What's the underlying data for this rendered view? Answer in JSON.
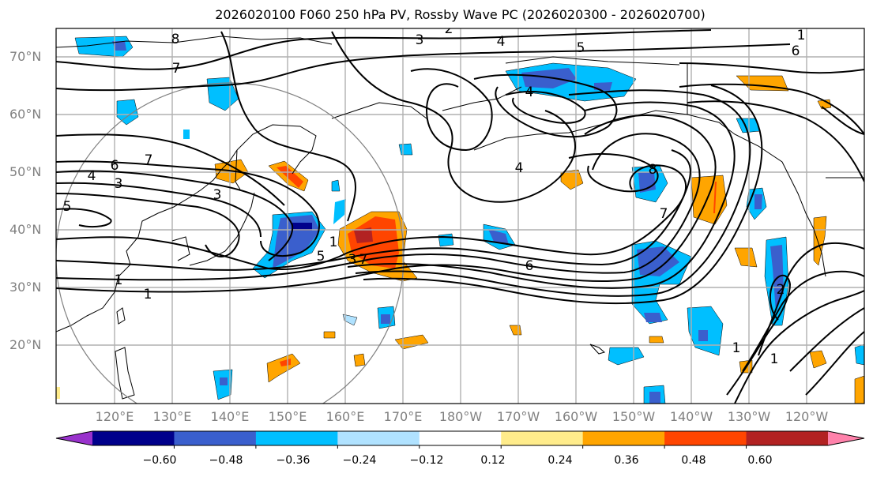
{
  "title": "2026020100 F060 250 hPa PV, Rossby Wave PC (2026020300 - 2026020700)",
  "lat_labels": [
    "70°N",
    "60°N",
    "50°N",
    "40°N",
    "30°N",
    "20°N"
  ],
  "lon_labels": [
    "120°E",
    "130°E",
    "140°E",
    "150°E",
    "160°E",
    "170°E",
    "180°W",
    "170°W",
    "160°W",
    "150°W",
    "140°W",
    "130°W",
    "120°W"
  ],
  "colorbar": {
    "ticks": [
      "−0.60",
      "−0.48",
      "−0.36",
      "−0.24",
      "−0.12",
      "0.12",
      "0.24",
      "0.36",
      "0.48",
      "0.60"
    ],
    "colors": [
      "#9932cc",
      "#00008b",
      "#3a5fcd",
      "#00bfff",
      "#b0e2ff",
      "#ffffff",
      "#ffec8b",
      "#ffa500",
      "#ff4500",
      "#b22222",
      "#ff82ab"
    ]
  },
  "contour_labels": [
    "1",
    "2",
    "3",
    "4",
    "5",
    "6",
    "7",
    "8"
  ],
  "contour_label_instances": [
    "8",
    "7",
    "6",
    "7",
    "4",
    "3",
    "5",
    "3",
    "1",
    "1",
    "5",
    "3",
    "7",
    "3",
    "2",
    "4",
    "5",
    "4",
    "4",
    "6",
    "8",
    "7",
    "6",
    "1",
    "1",
    "1",
    "2",
    "1"
  ]
}
